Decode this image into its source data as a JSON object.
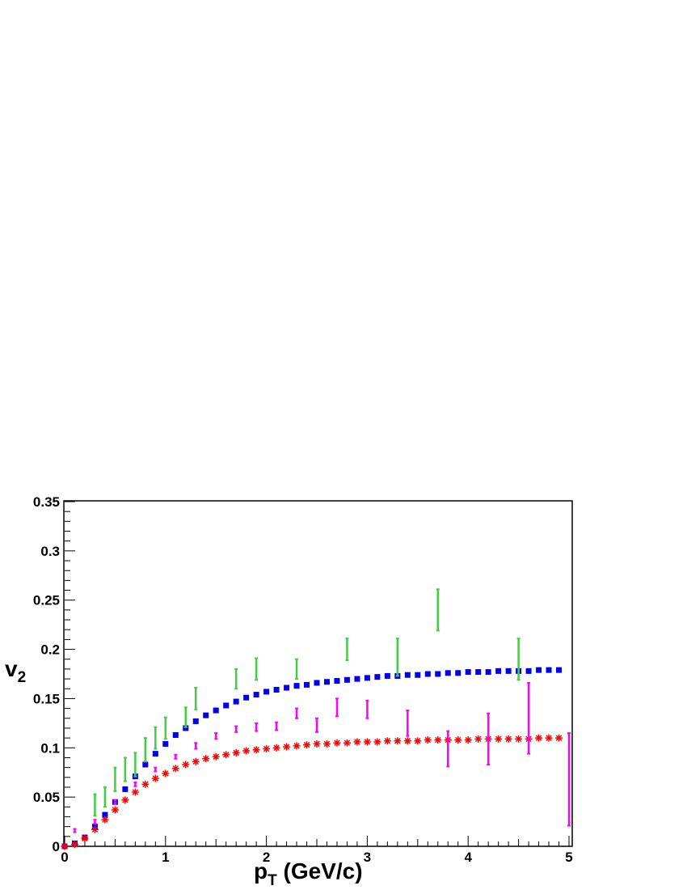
{
  "chart_data": {
    "type": "scatter",
    "title": "",
    "xlabel_main": "p",
    "xlabel_sub": "T",
    "xlabel_unit": " (GeV/c)",
    "ylabel_main": "v",
    "ylabel_sub": "2",
    "xlim": [
      0,
      5
    ],
    "ylim": [
      0,
      0.35
    ],
    "x_ticks": [
      0,
      1,
      2,
      3,
      4,
      5
    ],
    "y_ticks": [
      0,
      0.05,
      0.1,
      0.15,
      0.2,
      0.25,
      0.3,
      0.35
    ],
    "x_tick_labels": [
      "0",
      "1",
      "2",
      "3",
      "4",
      "5"
    ],
    "y_tick_labels": [
      "0",
      "0.05",
      "0.1",
      "0.15",
      "0.2",
      "0.25",
      "0.3",
      "0.35"
    ],
    "grid": false,
    "legend": "none",
    "series": [
      {
        "color": "#0000ee",
        "marker": "square",
        "x": [
          0.0,
          0.1,
          0.2,
          0.3,
          0.4,
          0.5,
          0.6,
          0.7,
          0.8,
          0.9,
          1.0,
          1.1,
          1.2,
          1.3,
          1.4,
          1.5,
          1.6,
          1.7,
          1.8,
          1.9,
          2.0,
          2.1,
          2.2,
          2.3,
          2.4,
          2.5,
          2.6,
          2.7,
          2.8,
          2.9,
          3.0,
          3.1,
          3.2,
          3.3,
          3.4,
          3.5,
          3.6,
          3.7,
          3.8,
          3.9,
          4.0,
          4.1,
          4.2,
          4.3,
          4.4,
          4.5,
          4.6,
          4.7,
          4.8,
          4.9
        ],
        "y": [
          0.0,
          0.003,
          0.009,
          0.02,
          0.032,
          0.045,
          0.058,
          0.071,
          0.083,
          0.094,
          0.104,
          0.113,
          0.12,
          0.127,
          0.133,
          0.138,
          0.143,
          0.147,
          0.151,
          0.154,
          0.157,
          0.159,
          0.161,
          0.163,
          0.164,
          0.166,
          0.167,
          0.168,
          0.169,
          0.17,
          0.171,
          0.172,
          0.173,
          0.173,
          0.174,
          0.174,
          0.175,
          0.175,
          0.176,
          0.176,
          0.177,
          0.177,
          0.177,
          0.178,
          0.178,
          0.178,
          0.178,
          0.179,
          0.179,
          0.179
        ]
      },
      {
        "color": "#ff0000",
        "marker": "star",
        "x": [
          0.0,
          0.1,
          0.2,
          0.3,
          0.4,
          0.5,
          0.6,
          0.7,
          0.8,
          0.9,
          1.0,
          1.1,
          1.2,
          1.3,
          1.4,
          1.5,
          1.6,
          1.7,
          1.8,
          1.9,
          2.0,
          2.1,
          2.2,
          2.3,
          2.4,
          2.5,
          2.6,
          2.7,
          2.8,
          2.9,
          3.0,
          3.1,
          3.2,
          3.3,
          3.4,
          3.5,
          3.6,
          3.7,
          3.8,
          3.9,
          4.0,
          4.1,
          4.2,
          4.3,
          4.4,
          4.5,
          4.6,
          4.7,
          4.8,
          4.9
        ],
        "y": [
          0.0,
          0.002,
          0.008,
          0.017,
          0.027,
          0.037,
          0.047,
          0.055,
          0.063,
          0.069,
          0.074,
          0.079,
          0.083,
          0.086,
          0.089,
          0.091,
          0.093,
          0.095,
          0.097,
          0.098,
          0.099,
          0.1,
          0.101,
          0.102,
          0.103,
          0.104,
          0.104,
          0.105,
          0.105,
          0.106,
          0.106,
          0.106,
          0.107,
          0.107,
          0.107,
          0.107,
          0.108,
          0.108,
          0.108,
          0.108,
          0.108,
          0.109,
          0.109,
          0.109,
          0.109,
          0.109,
          0.109,
          0.11,
          0.11,
          0.11
        ]
      },
      {
        "color": "#ff00ff",
        "marker": "errorbar",
        "x": [
          0.1,
          0.3,
          0.5,
          0.7,
          0.9,
          1.1,
          1.3,
          1.5,
          1.7,
          1.9,
          2.1,
          2.3,
          2.5,
          2.7,
          3.0,
          3.4,
          3.8,
          4.2,
          4.6,
          5.0
        ],
        "y": [
          0.016,
          0.025,
          0.045,
          0.063,
          0.078,
          0.091,
          0.102,
          0.112,
          0.119,
          0.121,
          0.122,
          0.135,
          0.123,
          0.141,
          0.139,
          0.125,
          0.099,
          0.109,
          0.13,
          0.068
        ],
        "err": [
          0.001,
          0.002,
          0.002,
          0.002,
          0.002,
          0.002,
          0.003,
          0.003,
          0.003,
          0.004,
          0.004,
          0.005,
          0.007,
          0.009,
          0.009,
          0.013,
          0.018,
          0.026,
          0.036,
          0.047
        ]
      },
      {
        "color": "#44cc44",
        "marker": "errorbar",
        "x": [
          0.3,
          0.4,
          0.5,
          0.6,
          0.7,
          0.8,
          0.9,
          1.0,
          1.2,
          1.3,
          1.7,
          1.9,
          2.3,
          2.8,
          3.3,
          3.7,
          4.5
        ],
        "y": [
          0.042,
          0.05,
          0.068,
          0.078,
          0.083,
          0.098,
          0.11,
          0.12,
          0.131,
          0.15,
          0.17,
          0.18,
          0.18,
          0.2,
          0.192,
          0.24,
          0.19
        ],
        "err": [
          0.011,
          0.01,
          0.012,
          0.012,
          0.012,
          0.012,
          0.011,
          0.011,
          0.01,
          0.011,
          0.01,
          0.011,
          0.01,
          0.011,
          0.019,
          0.021,
          0.021
        ]
      }
    ]
  }
}
